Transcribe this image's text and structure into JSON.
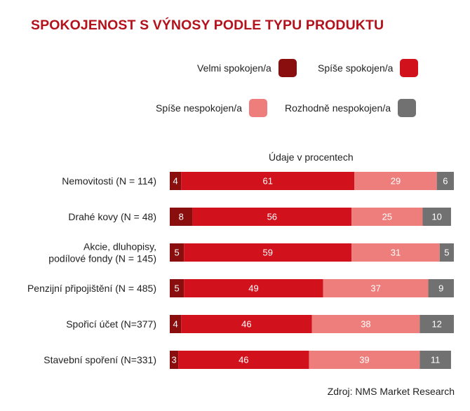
{
  "chart_data": {
    "type": "bar",
    "orientation": "horizontal",
    "stacked": true,
    "title": "SPOKOJENOST S VÝNOSY PODLE TYPU PRODUKTU",
    "unit_note": "Údaje v procentech",
    "source": "Zdroj: NMS Market Research",
    "legend_placement": "top-right",
    "grid": false,
    "xlim": [
      0,
      100
    ],
    "categories": [
      [
        "Nemovitosti (N = 114)"
      ],
      [
        "Drahé kovy (N = 48)"
      ],
      [
        "Akcie, dluhopisy,",
        "podílové fondy (N = 145)"
      ],
      [
        "Penzijní připojištění (N = 485)"
      ],
      [
        "Spořicí účet (N=377)"
      ],
      [
        "Stavební spoření (N=331)"
      ]
    ],
    "series": [
      {
        "name": "Velmi spokojen/a",
        "color": "#8a0e0e",
        "values": [
          4,
          8,
          5,
          5,
          4,
          3
        ]
      },
      {
        "name": "Spíše spokojen/a",
        "color": "#d1111c",
        "values": [
          61,
          56,
          59,
          49,
          46,
          46
        ]
      },
      {
        "name": "Spíše nespokojen/a",
        "color": "#ee7e7c",
        "values": [
          29,
          25,
          31,
          37,
          38,
          39
        ]
      },
      {
        "name": "Rozhodně nespokojen/a",
        "color": "#717171",
        "values": [
          6,
          10,
          5,
          9,
          12,
          11
        ]
      }
    ]
  }
}
